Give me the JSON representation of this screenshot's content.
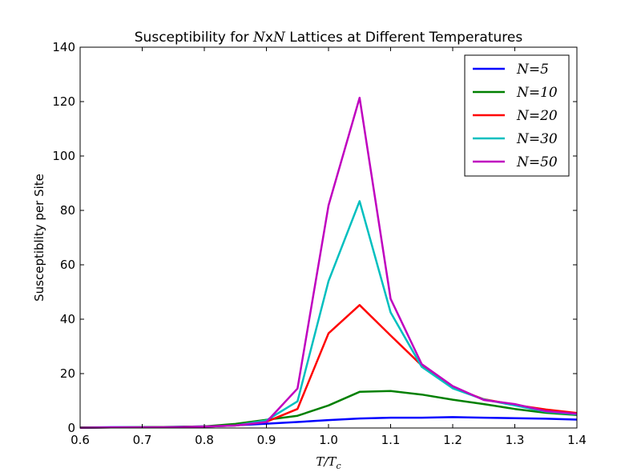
{
  "chart_data": {
    "type": "line",
    "title_prefix": "Susceptibility for ",
    "title_math": "N",
    "title_x": "x",
    "title_suffix": " Lattices at Different Temperatures",
    "xlabel": "T/T",
    "xlabel_sub": "c",
    "ylabel": "Susceptiblity per Site",
    "xlim": [
      0.6,
      1.4
    ],
    "ylim": [
      0,
      140
    ],
    "xticks": [
      "0.6",
      "0.7",
      "0.8",
      "0.9",
      "1.0",
      "1.1",
      "1.2",
      "1.3",
      "1.4"
    ],
    "yticks": [
      "0",
      "20",
      "40",
      "60",
      "80",
      "100",
      "120",
      "140"
    ],
    "legend_position": "top-right",
    "grid": false,
    "x": [
      0.6,
      0.65,
      0.7,
      0.75,
      0.8,
      0.85,
      0.9,
      0.95,
      1.0,
      1.05,
      1.1,
      1.15,
      1.2,
      1.25,
      1.3,
      1.35,
      1.4
    ],
    "series": [
      {
        "name": "N=5",
        "color": "#0000ff",
        "values": [
          0.2,
          0.3,
          0.3,
          0.4,
          0.6,
          1.0,
          1.6,
          2.2,
          2.9,
          3.5,
          3.8,
          3.8,
          4.0,
          3.8,
          3.6,
          3.4,
          3.1
        ]
      },
      {
        "name": "N=10",
        "color": "#008000",
        "values": [
          0.2,
          0.2,
          0.3,
          0.4,
          0.6,
          1.5,
          3.0,
          4.5,
          8.3,
          13.3,
          13.6,
          12.3,
          10.4,
          8.8,
          7.0,
          5.6,
          4.8
        ]
      },
      {
        "name": "N=20",
        "color": "#ff0000",
        "values": [
          0.1,
          0.2,
          0.2,
          0.3,
          0.5,
          0.9,
          2.3,
          7.0,
          34.8,
          45.2,
          34.0,
          23.0,
          14.8,
          10.6,
          8.5,
          6.8,
          5.5
        ]
      },
      {
        "name": "N=30",
        "color": "#00bfbf",
        "values": [
          0.1,
          0.2,
          0.2,
          0.3,
          0.5,
          0.9,
          2.8,
          9.8,
          54.0,
          83.4,
          42.5,
          22.5,
          14.6,
          10.5,
          8.3,
          6.0,
          5.0
        ]
      },
      {
        "name": "N=50",
        "color": "#bf00bf",
        "values": [
          0.1,
          0.2,
          0.2,
          0.3,
          0.5,
          0.9,
          2.2,
          14.5,
          81.8,
          121.4,
          47.5,
          23.5,
          15.4,
          10.3,
          8.8,
          6.2,
          5.2
        ]
      }
    ]
  }
}
